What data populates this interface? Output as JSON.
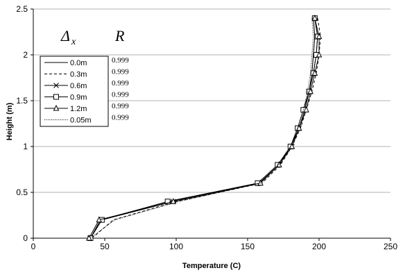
{
  "chart_data": {
    "type": "line",
    "xlabel": "Temperature (C)",
    "ylabel": "Height (m)",
    "xlim": [
      0,
      250
    ],
    "ylim": [
      0,
      2.5
    ],
    "x_ticks": [
      "0",
      "50",
      "100",
      "150",
      "200",
      "250"
    ],
    "y_ticks": [
      "0",
      "0.5",
      "1",
      "1.5",
      "2",
      "2.5"
    ],
    "grid": "horizontal",
    "legend_header": {
      "symbol": "Δ",
      "subscript": "x"
    },
    "r_header": "R",
    "legend_position": "upper-left",
    "series": [
      {
        "name": "0.0m",
        "marker": "none",
        "r": "0.999",
        "points": [
          [
            40,
            0
          ],
          [
            47,
            0.2
          ],
          [
            95,
            0.4
          ],
          [
            158,
            0.6
          ],
          [
            172,
            0.8
          ],
          [
            180,
            1.0
          ],
          [
            186,
            1.2
          ],
          [
            190,
            1.4
          ],
          [
            193,
            1.6
          ],
          [
            195,
            1.8
          ],
          [
            196,
            2.0
          ],
          [
            197,
            2.2
          ],
          [
            196,
            2.4
          ]
        ]
      },
      {
        "name": "0.3m",
        "marker": "none",
        "r": "0.999",
        "points": [
          [
            41,
            0
          ],
          [
            56,
            0.2
          ],
          [
            100,
            0.4
          ],
          [
            160,
            0.6
          ],
          [
            173,
            0.8
          ],
          [
            181,
            1.0
          ],
          [
            187,
            1.2
          ],
          [
            191,
            1.4
          ],
          [
            195,
            1.6
          ],
          [
            198,
            1.8
          ],
          [
            200,
            2.0
          ],
          [
            201,
            2.2
          ],
          [
            199,
            2.4
          ]
        ]
      },
      {
        "name": "0.6m",
        "marker": "x",
        "r": "0.999",
        "points": [
          [
            40,
            0
          ],
          [
            48,
            0.2
          ],
          [
            98,
            0.4
          ],
          [
            158,
            0.6
          ],
          [
            172,
            0.8
          ],
          [
            181,
            1.0
          ],
          [
            186,
            1.2
          ],
          [
            190,
            1.4
          ],
          [
            193,
            1.6
          ],
          [
            196,
            1.8
          ],
          [
            198,
            2.0
          ],
          [
            199,
            2.2
          ],
          [
            197,
            2.4
          ]
        ]
      },
      {
        "name": "0.9m",
        "marker": "square",
        "r": "0.999",
        "points": [
          [
            40,
            0
          ],
          [
            48,
            0.2
          ],
          [
            94,
            0.4
          ],
          [
            157,
            0.6
          ],
          [
            171,
            0.8
          ],
          [
            180,
            1.0
          ],
          [
            185,
            1.2
          ],
          [
            189,
            1.4
          ],
          [
            193,
            1.6
          ],
          [
            196,
            1.8
          ],
          [
            198,
            2.0
          ],
          [
            199,
            2.2
          ],
          [
            197,
            2.4
          ]
        ]
      },
      {
        "name": "1.2m",
        "marker": "triangle",
        "r": "0.999",
        "points": [
          [
            39,
            0
          ],
          [
            46,
            0.2
          ],
          [
            98,
            0.4
          ],
          [
            159,
            0.6
          ],
          [
            172,
            0.8
          ],
          [
            181,
            1.0
          ],
          [
            186,
            1.2
          ],
          [
            191,
            1.4
          ],
          [
            194,
            1.6
          ],
          [
            197,
            1.8
          ],
          [
            200,
            2.0
          ],
          [
            200,
            2.2
          ],
          [
            197,
            2.4
          ]
        ]
      },
      {
        "name": "0.05m",
        "marker": "none",
        "dash": "1,1.5",
        "r": "0.999",
        "points": [
          [
            40,
            0
          ],
          [
            57,
            0.2
          ],
          [
            102,
            0.4
          ],
          [
            159,
            0.6
          ],
          [
            172,
            0.8
          ],
          [
            180,
            1.0
          ],
          [
            185,
            1.2
          ],
          [
            189,
            1.4
          ],
          [
            192,
            1.6
          ],
          [
            194,
            1.8
          ],
          [
            195,
            2.0
          ],
          [
            196,
            2.2
          ],
          [
            195,
            2.4
          ]
        ]
      }
    ]
  }
}
